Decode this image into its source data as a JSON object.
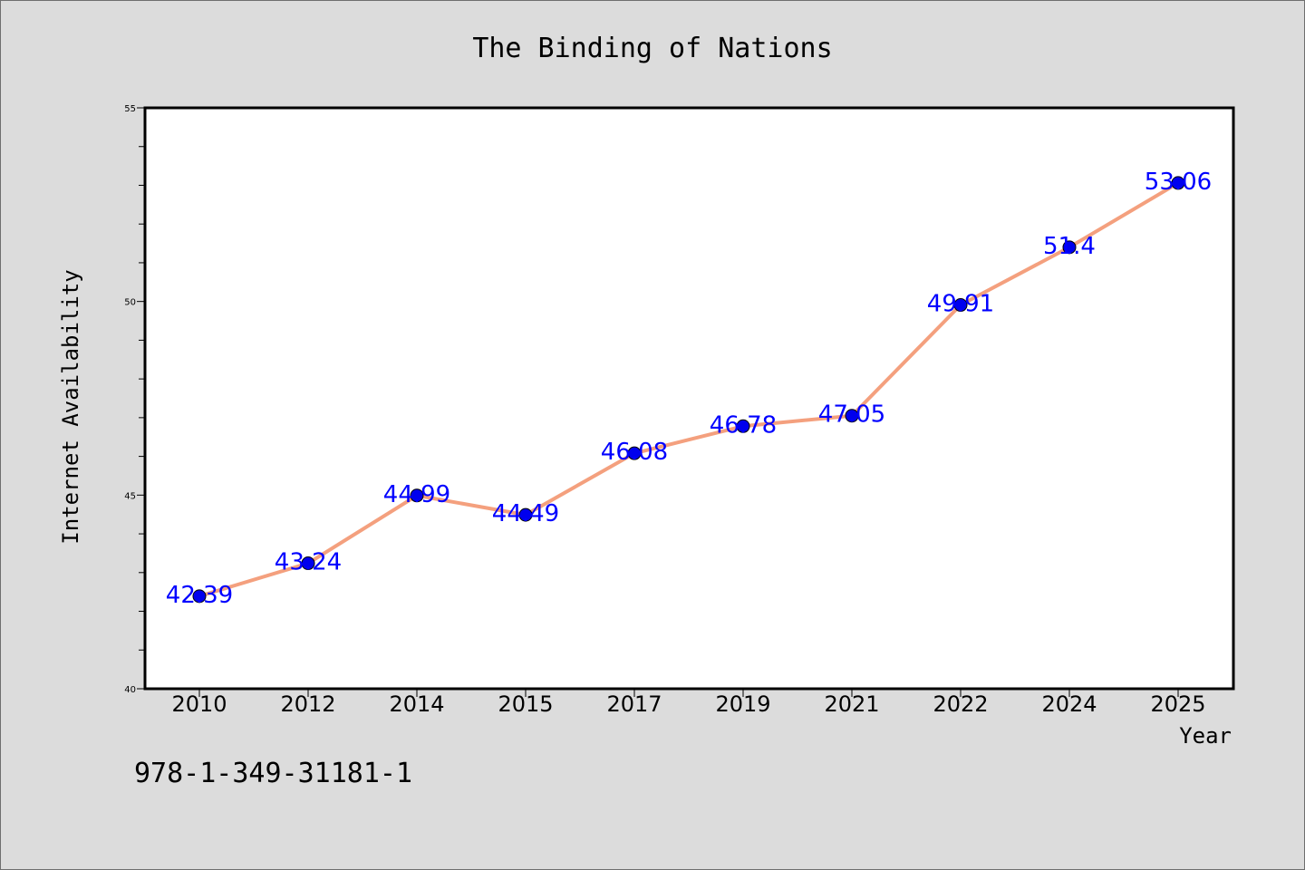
{
  "chart_data": {
    "type": "line",
    "title": "The Binding of Nations",
    "xlabel": "Year",
    "ylabel": "Internet Availability",
    "categories": [
      "2010",
      "2012",
      "2014",
      "2015",
      "2017",
      "2019",
      "2021",
      "2022",
      "2024",
      "2025"
    ],
    "series": [
      {
        "values": [
          42.39,
          43.24,
          44.99,
          44.49,
          46.08,
          46.78,
          47.05,
          49.91,
          51.4,
          53.06
        ],
        "labels": [
          "42.39",
          "43.24",
          "44.99",
          "44.49",
          "46.08",
          "46.78",
          "47.05",
          "49.91",
          "51.4",
          "53.06"
        ],
        "line_color": "#f4a07e",
        "marker_color": "#0000ee",
        "label_color": "#0000ff"
      }
    ],
    "ylim": [
      40,
      55
    ],
    "yticks": [
      "40",
      "45",
      "50",
      "55"
    ],
    "grid": false,
    "legend": "none"
  },
  "annotation": "978-1-349-31181-1",
  "colors": {
    "background": "#dcdcdc",
    "plot_background": "#ffffff"
  }
}
